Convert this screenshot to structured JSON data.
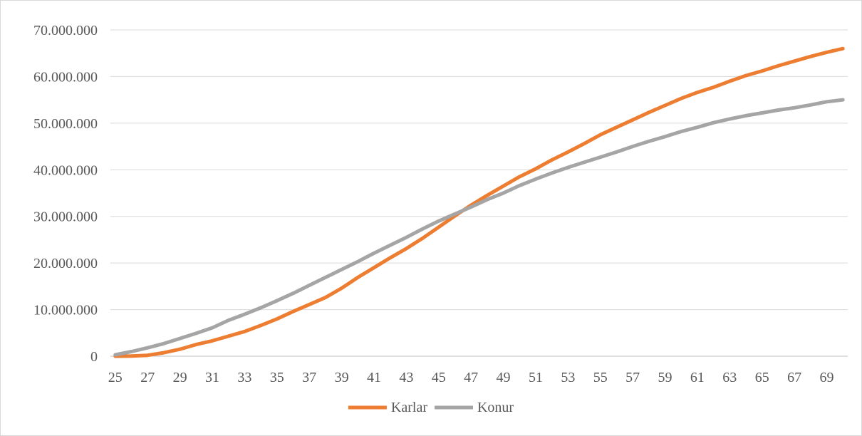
{
  "chart_data": {
    "type": "line",
    "title": "",
    "xlabel": "",
    "ylabel": "",
    "x": [
      25,
      26,
      27,
      28,
      29,
      30,
      31,
      32,
      33,
      34,
      35,
      36,
      37,
      38,
      39,
      40,
      41,
      42,
      43,
      44,
      45,
      46,
      47,
      48,
      49,
      50,
      51,
      52,
      53,
      54,
      55,
      56,
      57,
      58,
      59,
      60,
      61,
      62,
      63,
      64,
      65,
      66,
      67,
      68,
      69,
      70
    ],
    "x_tick_labels": [
      "25",
      "27",
      "29",
      "31",
      "33",
      "35",
      "37",
      "39",
      "41",
      "43",
      "45",
      "47",
      "49",
      "51",
      "53",
      "55",
      "57",
      "59",
      "61",
      "63",
      "65",
      "67",
      "69"
    ],
    "y_tick_values": [
      0,
      10000000,
      20000000,
      30000000,
      40000000,
      50000000,
      60000000,
      70000000
    ],
    "y_tick_labels": [
      "0",
      "10.000.000",
      "20.000.000",
      "30.000.000",
      "40.000.000",
      "50.000.000",
      "60.000.000",
      "70.000.000"
    ],
    "ylim": [
      0,
      70000000
    ],
    "grid": true,
    "legend_position": "bottom",
    "series": [
      {
        "name": "Karlar",
        "color": "#ed7d31",
        "values": [
          0,
          50000,
          200000,
          750000,
          1500000,
          2500000,
          3300000,
          4300000,
          5300000,
          6600000,
          8000000,
          9600000,
          11100000,
          12600000,
          14600000,
          16900000,
          19000000,
          21100000,
          23100000,
          25300000,
          27700000,
          30100000,
          32400000,
          34500000,
          36500000,
          38500000,
          40200000,
          42100000,
          43800000,
          45600000,
          47500000,
          49100000,
          50700000,
          52300000,
          53800000,
          55300000,
          56600000,
          57700000,
          59000000,
          60200000,
          61200000,
          62300000,
          63300000,
          64300000,
          65200000,
          66000000
        ]
      },
      {
        "name": "Konur",
        "color": "#a5a5a5",
        "values": [
          300000,
          1000000,
          1800000,
          2700000,
          3800000,
          4900000,
          6100000,
          7700000,
          9000000,
          10400000,
          11900000,
          13500000,
          15200000,
          16900000,
          18600000,
          20300000,
          22100000,
          23800000,
          25500000,
          27300000,
          29000000,
          30500000,
          32000000,
          33600000,
          35000000,
          36600000,
          38000000,
          39300000,
          40500000,
          41600000,
          42700000,
          43800000,
          45000000,
          46100000,
          47100000,
          48200000,
          49100000,
          50100000,
          50900000,
          51600000,
          52200000,
          52800000,
          53300000,
          53900000,
          54600000,
          55000000
        ]
      }
    ]
  }
}
